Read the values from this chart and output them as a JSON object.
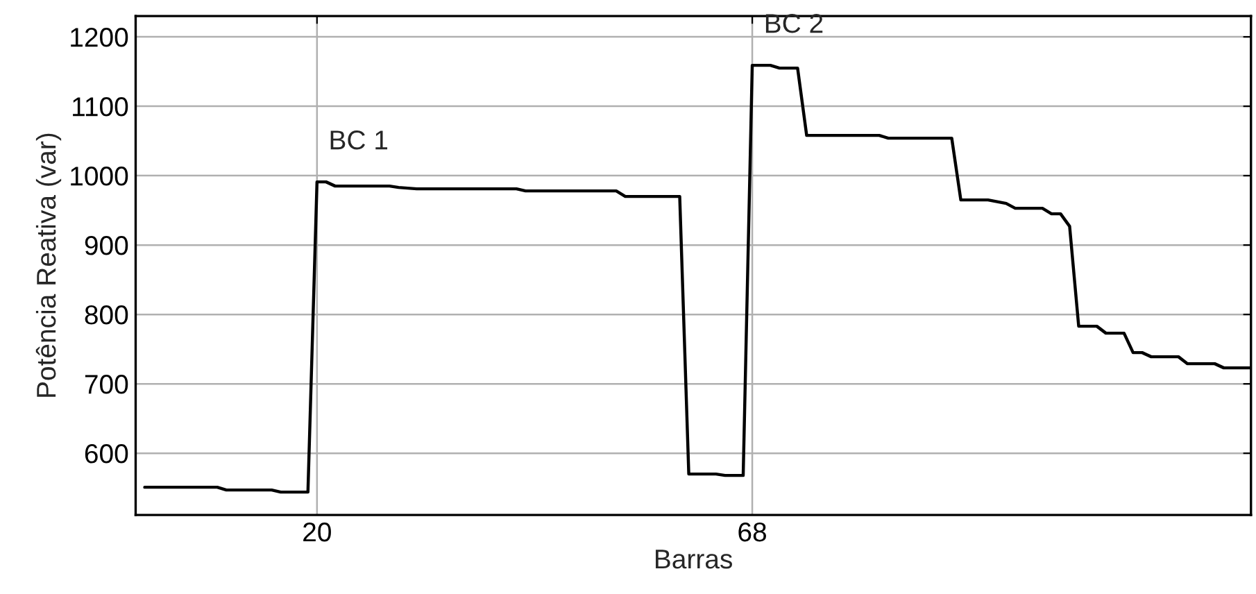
{
  "chart_data": {
    "type": "line",
    "xlabel": "Barras",
    "ylabel": "Potência Reativa (var)",
    "x": [
      1,
      9,
      10,
      15,
      16,
      19,
      20,
      21,
      22,
      28,
      29,
      31,
      42,
      43,
      53,
      54,
      60,
      61,
      64,
      65,
      67,
      68,
      70,
      71,
      73,
      74,
      82,
      83,
      90,
      91,
      94,
      96,
      97,
      100,
      101,
      102,
      103,
      104,
      106,
      107,
      109,
      110,
      111,
      112,
      115,
      116,
      119,
      120,
      123
    ],
    "series": [
      {
        "color": "#000000",
        "values": [
          551,
          551,
          547,
          547,
          544,
          544,
          991,
          991,
          985,
          985,
          983,
          981,
          981,
          978,
          978,
          970,
          970,
          570,
          570,
          568,
          568,
          1159,
          1159,
          1155,
          1155,
          1058,
          1058,
          1054,
          1054,
          965,
          965,
          960,
          953,
          953,
          945,
          945,
          927,
          783,
          783,
          773,
          773,
          745,
          745,
          739,
          739,
          729,
          729,
          723,
          723
        ]
      }
    ],
    "xlim": [
      0,
      123
    ],
    "xticks": [
      20,
      68
    ],
    "ylim": [
      511,
      1230
    ],
    "yticks": [
      600,
      700,
      800,
      900,
      1000,
      1100,
      1200
    ],
    "grid": true,
    "marker": "none",
    "line_style": "solid",
    "annotations": [
      {
        "text": "BC 1",
        "x": 20,
        "y": 991
      },
      {
        "text": "BC 2",
        "x": 68,
        "y": 1159
      }
    ]
  }
}
